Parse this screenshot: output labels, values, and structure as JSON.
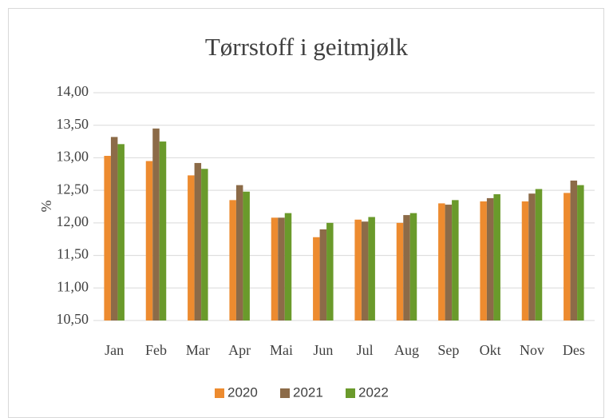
{
  "chart_data": {
    "type": "bar",
    "title": "Tørrstoff i geitmjølk",
    "y_label": "%",
    "categories": [
      "Jan",
      "Feb",
      "Mar",
      "Apr",
      "Mai",
      "Jun",
      "Jul",
      "Aug",
      "Sep",
      "Okt",
      "Nov",
      "Des"
    ],
    "series": [
      {
        "name": "2020",
        "color": "#ed8b2f",
        "values": [
          13.03,
          12.95,
          12.73,
          12.35,
          12.08,
          11.78,
          12.05,
          12.0,
          12.3,
          12.33,
          12.33,
          12.46
        ]
      },
      {
        "name": "2021",
        "color": "#8c6b48",
        "values": [
          13.32,
          13.45,
          12.92,
          12.58,
          12.08,
          11.9,
          12.02,
          12.12,
          12.28,
          12.38,
          12.45,
          12.65
        ]
      },
      {
        "name": "2022",
        "color": "#6a9a2b",
        "values": [
          13.21,
          13.25,
          12.83,
          12.48,
          12.15,
          12.0,
          12.09,
          12.15,
          12.35,
          12.44,
          12.52,
          12.58
        ]
      }
    ],
    "ylim": [
      10.5,
      14.0
    ],
    "yticks": [
      {
        "value": 10.5,
        "label": "10,50"
      },
      {
        "value": 11.0,
        "label": "11,00"
      },
      {
        "value": 11.5,
        "label": "11,50"
      },
      {
        "value": 12.0,
        "label": "12,00"
      },
      {
        "value": 12.5,
        "label": "12,50"
      },
      {
        "value": 13.0,
        "label": "13,00"
      },
      {
        "value": 13.5,
        "label": "13,50"
      },
      {
        "value": 14.0,
        "label": "14,00"
      }
    ],
    "grid": true,
    "legend": "bottom"
  }
}
